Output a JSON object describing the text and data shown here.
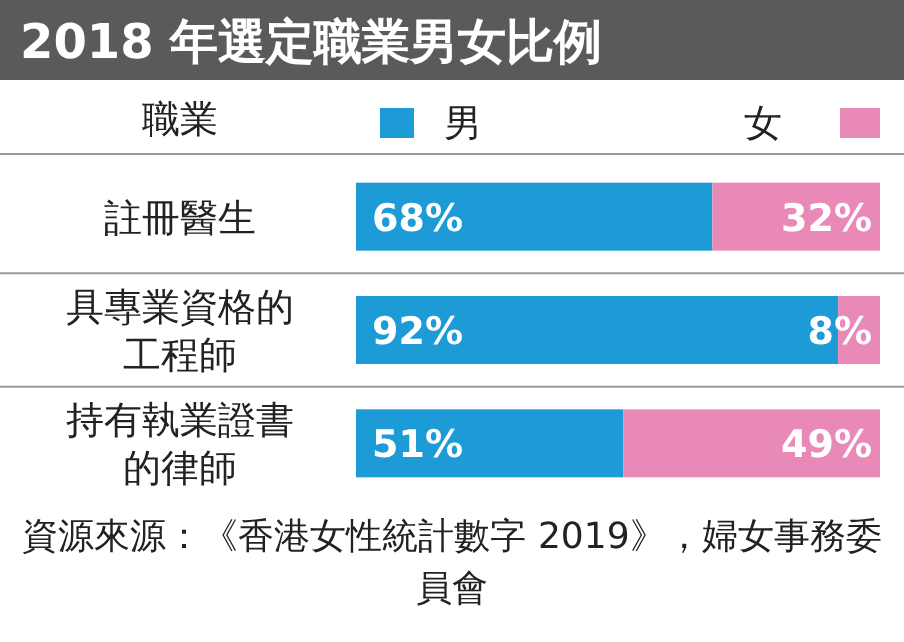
{
  "chart_data": {
    "type": "bar",
    "orientation": "horizontal",
    "stacked": true,
    "title": "2018 年選定職業男女比例",
    "ylabel": "職業",
    "categories": [
      "註冊醫生",
      "具專業資格的工程師",
      "持有執業證書的律師"
    ],
    "series": [
      {
        "name": "男",
        "color": "#1c9bd7",
        "values": [
          68,
          92,
          51
        ],
        "value_labels": [
          "68%",
          "92%",
          "51%"
        ]
      },
      {
        "name": "女",
        "color": "#e989b7",
        "values": [
          32,
          8,
          49
        ],
        "value_labels": [
          "32%",
          "8%",
          "49%"
        ]
      }
    ],
    "xlim": [
      0,
      100
    ],
    "legend": "top",
    "annotations": [
      "資源來源：《香港女性統計數字 2019》，婦女事務委員會"
    ]
  }
}
